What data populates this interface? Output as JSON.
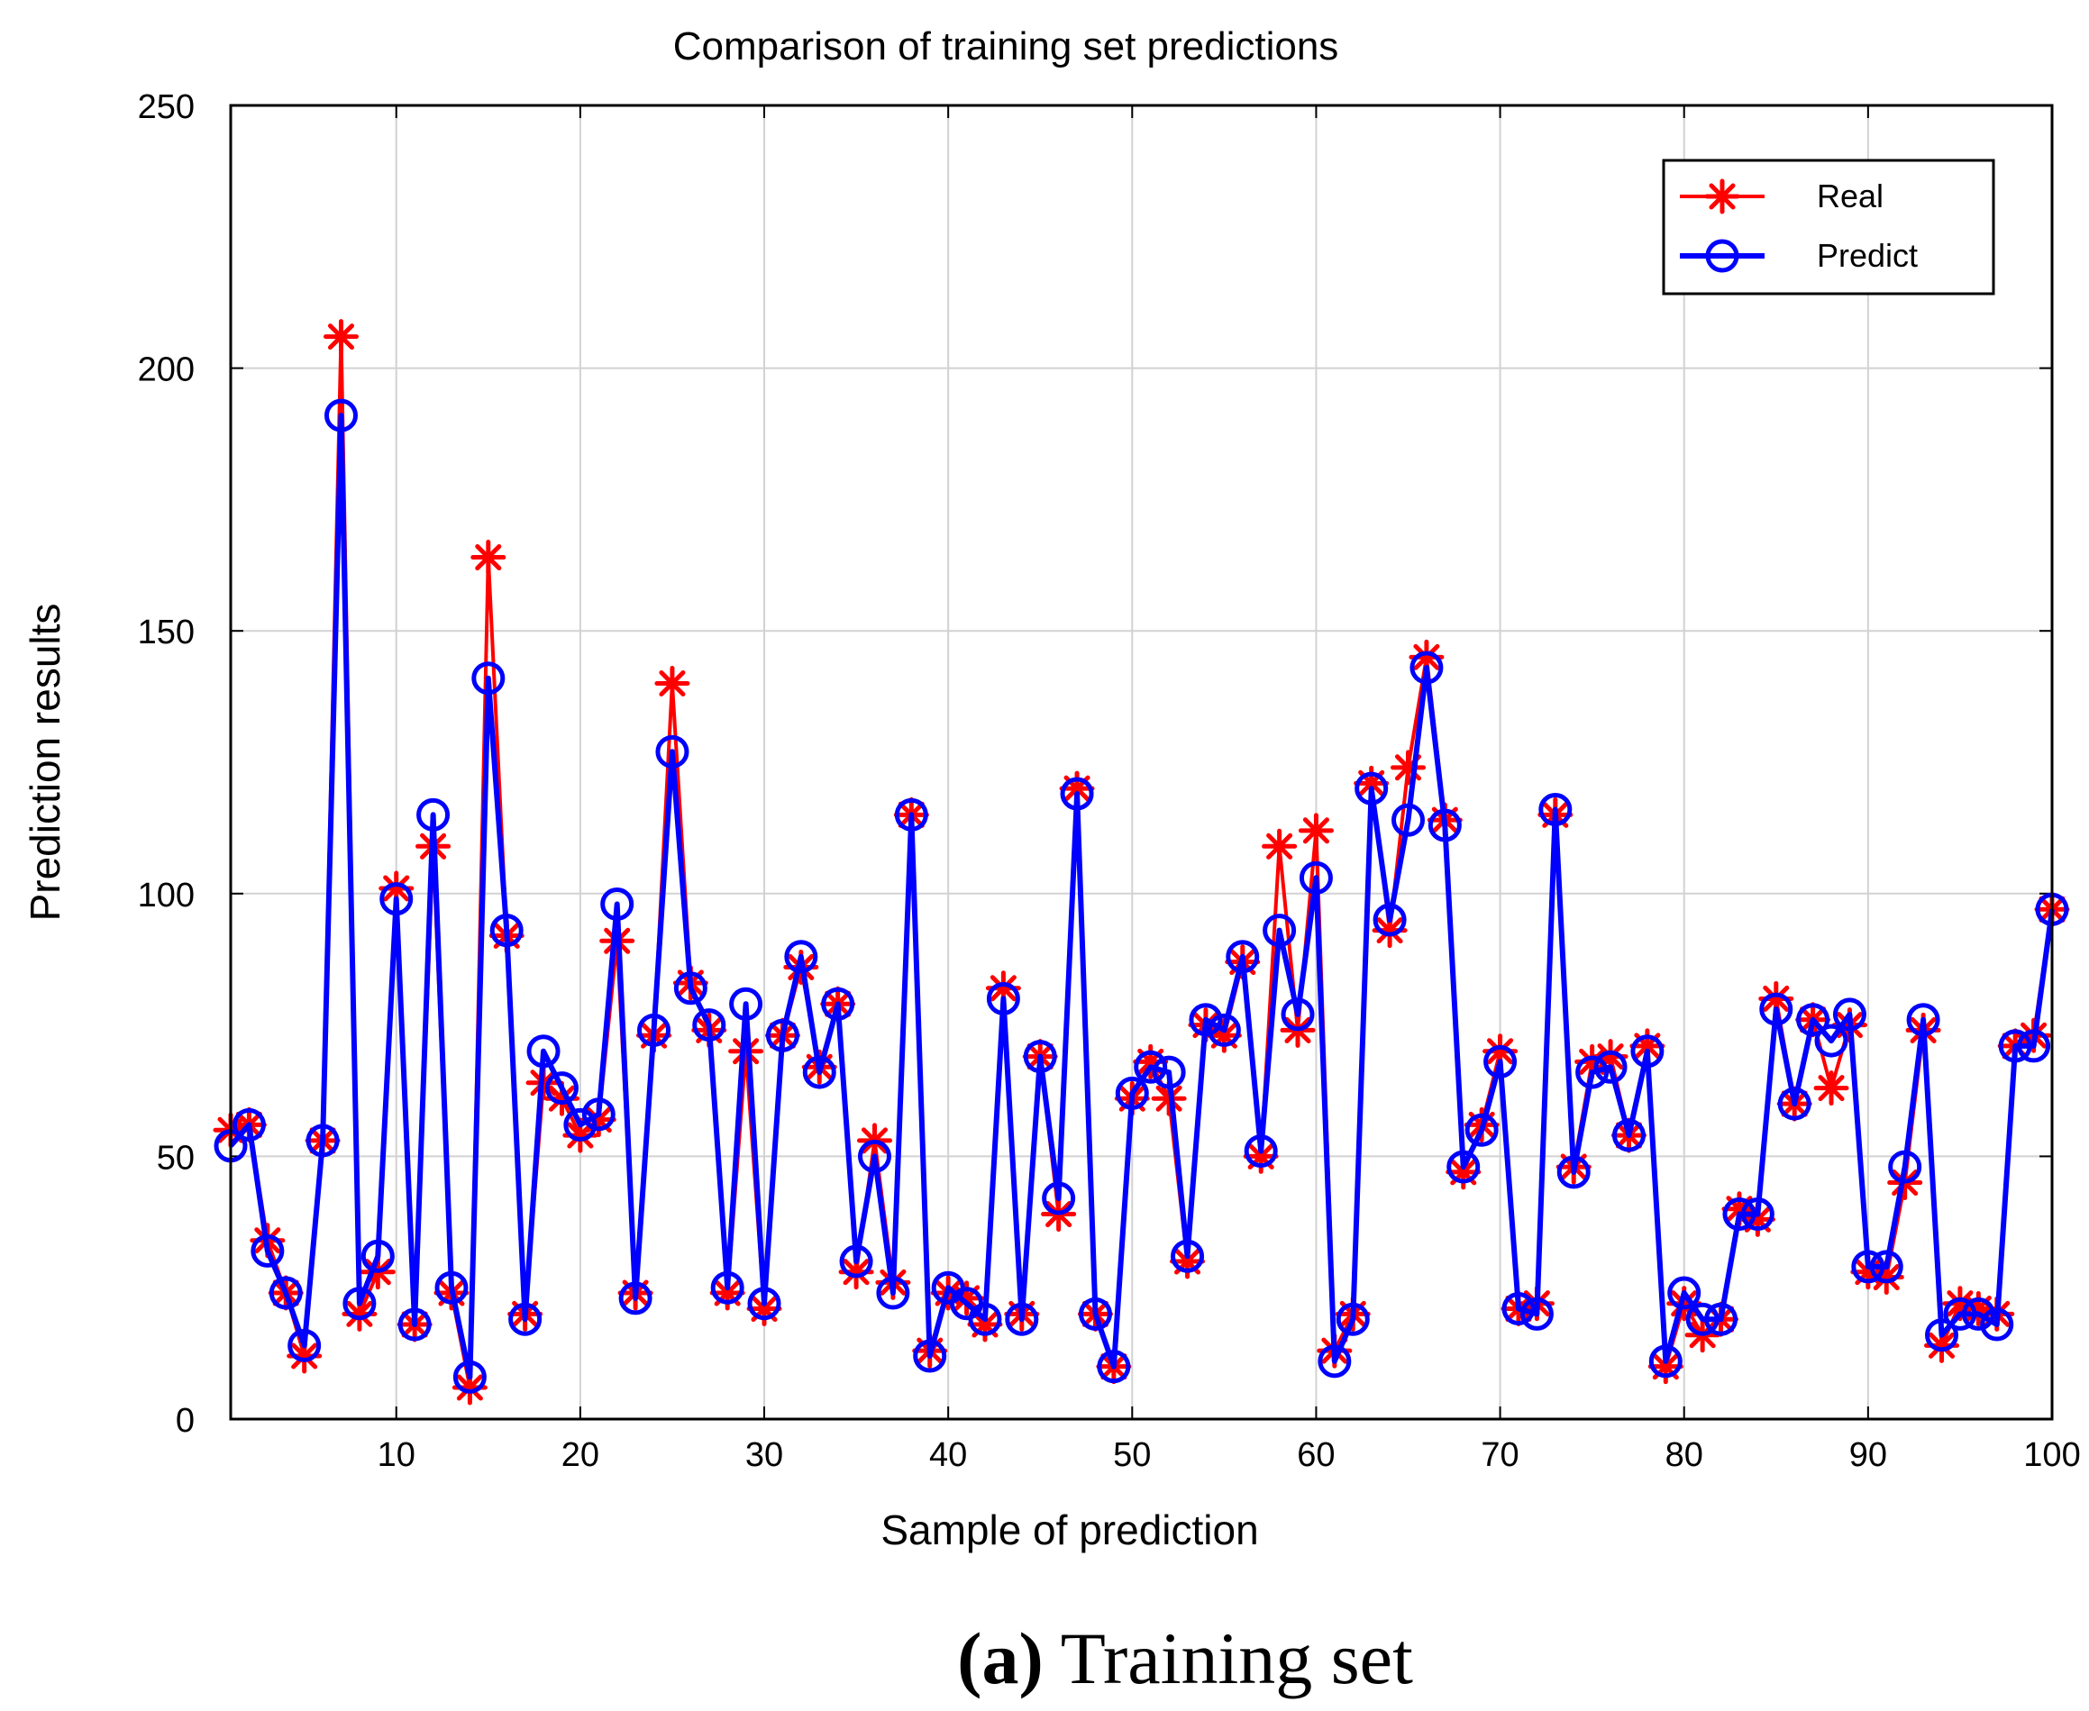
{
  "chart_data": {
    "type": "line",
    "title": "Comparison of training set predictions",
    "xlabel": "Sample of prediction",
    "ylabel": "Prediction results",
    "xlim": [
      1,
      100
    ],
    "ylim": [
      0,
      250
    ],
    "xticks": [
      10,
      20,
      30,
      40,
      50,
      60,
      70,
      80,
      90,
      100
    ],
    "yticks": [
      0,
      50,
      100,
      150,
      200,
      250
    ],
    "grid": true,
    "legend_position": "top-right",
    "caption_bold": "(a)",
    "caption_rest": " Training set",
    "series": [
      {
        "name": "Real",
        "color": "#ff0000",
        "marker": "asterisk",
        "values": [
          55,
          56,
          34,
          24,
          12,
          53,
          206,
          20,
          28,
          101,
          18,
          109,
          24,
          6,
          164,
          92,
          20,
          64,
          61,
          54,
          57,
          91,
          24,
          73,
          140,
          83,
          74,
          24,
          70,
          21,
          73,
          86,
          67,
          79,
          28,
          53,
          26,
          115,
          13,
          24,
          23,
          18,
          82,
          20,
          69,
          39,
          120,
          20,
          10,
          61,
          68,
          61,
          30,
          75,
          73,
          87,
          50,
          109,
          74,
          112,
          13,
          20,
          121,
          93,
          124,
          145,
          114,
          47,
          56,
          70,
          21,
          22,
          115,
          48,
          68,
          69,
          54,
          71,
          10,
          22,
          16,
          19,
          40,
          38,
          80,
          60,
          76,
          63,
          75,
          28,
          27,
          45,
          74,
          14,
          22,
          21,
          20,
          71,
          73,
          97
        ]
      },
      {
        "name": "Predict",
        "color": "#0000ff",
        "marker": "circle",
        "values": [
          52,
          56,
          32,
          24,
          14,
          53,
          191,
          22,
          31,
          99,
          18,
          115,
          25,
          8,
          141,
          93,
          19,
          70,
          63,
          56,
          58,
          98,
          23,
          74,
          127,
          82,
          75,
          25,
          79,
          22,
          73,
          88,
          66,
          79,
          30,
          50,
          24,
          115,
          12,
          25,
          22,
          19,
          80,
          19,
          69,
          42,
          119,
          20,
          10,
          62,
          67,
          66,
          31,
          76,
          74,
          88,
          51,
          93,
          77,
          103,
          11,
          19,
          120,
          95,
          114,
          143,
          113,
          48,
          55,
          68,
          21,
          20,
          116,
          47,
          66,
          67,
          54,
          70,
          11,
          24,
          19,
          19,
          39,
          39,
          78,
          60,
          76,
          72,
          77,
          29,
          29,
          48,
          76,
          16,
          20,
          20,
          18,
          71,
          71,
          97
        ]
      }
    ]
  }
}
